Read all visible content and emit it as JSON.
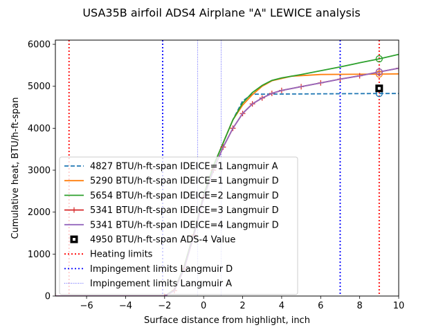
{
  "chart_data": {
    "type": "line",
    "title": "USA35B airfoil ADS4 Airplane \"A\" LEWICE analysis",
    "xlabel": "Surface distance from highlight, inch",
    "ylabel": "Cumulative heat, BTU/h-ft-span",
    "xlim": [
      -7.6,
      10
    ],
    "ylim": [
      0,
      6100
    ],
    "xticks": [
      -6,
      -4,
      -2,
      0,
      2,
      4,
      6,
      8,
      10
    ],
    "yticks": [
      0,
      1000,
      2000,
      3000,
      4000,
      5000,
      6000
    ],
    "grid": false,
    "legend_position": "lower-left",
    "series": [
      {
        "name": "4827 BTU/h-ft-span IDEICE=1 Langmuir A",
        "color": "#1f77b4",
        "style": "dashed",
        "marker": "",
        "x": [
          -7.6,
          -2.0,
          -1.5,
          -1.0,
          -0.5,
          0.0,
          0.5,
          1.0,
          1.5,
          2.0,
          2.5,
          9.0,
          10.0
        ],
        "y": [
          0,
          0,
          150,
          700,
          1500,
          2400,
          3100,
          3650,
          4200,
          4650,
          4810,
          4827,
          4827
        ]
      },
      {
        "name": "5290 BTU/h-ft-span IDEICE=1 Langmuir D",
        "color": "#ff7f0e",
        "style": "solid",
        "marker": "",
        "x": [
          -7.6,
          -2.0,
          -1.5,
          -1.0,
          -0.5,
          0.0,
          0.5,
          1.0,
          1.5,
          2.0,
          2.5,
          3.0,
          3.5,
          4.5,
          6.0,
          9.0,
          10.0
        ],
        "y": [
          0,
          0,
          150,
          700,
          1500,
          2400,
          3100,
          3650,
          4200,
          4550,
          4800,
          5000,
          5130,
          5240,
          5280,
          5290,
          5295
        ]
      },
      {
        "name": "5654 BTU/h-ft-span IDEICE=2 Langmuir D",
        "color": "#2ca02c",
        "style": "solid",
        "marker": "",
        "x": [
          -7.6,
          -2.0,
          -1.5,
          -1.0,
          -0.5,
          0.0,
          0.5,
          1.0,
          1.5,
          2.0,
          2.5,
          3.0,
          3.5,
          4.0,
          5.0,
          6.0,
          7.0,
          8.0,
          9.0,
          10.0
        ],
        "y": [
          0,
          0,
          150,
          700,
          1500,
          2400,
          3100,
          3650,
          4200,
          4600,
          4850,
          5020,
          5140,
          5200,
          5280,
          5370,
          5460,
          5560,
          5654,
          5760
        ]
      },
      {
        "name": "5341 BTU/h-ft-span IDEICE=3 Langmuir D",
        "color": "#d62728",
        "style": "solid",
        "marker": "+",
        "x": [
          -7.6,
          -2.0,
          -1.5,
          -1.0,
          -0.5,
          0.0,
          0.5,
          1.0,
          1.5,
          2.0,
          2.5,
          3.0,
          3.5,
          4.0,
          5.0,
          6.0,
          7.0,
          8.0,
          9.0,
          10.0
        ],
        "y": [
          0,
          0,
          130,
          650,
          1450,
          2350,
          3000,
          3550,
          4000,
          4350,
          4580,
          4720,
          4830,
          4900,
          4990,
          5080,
          5170,
          5250,
          5341,
          5430
        ]
      },
      {
        "name": "5341 BTU/h-ft-span IDEICE=4 Langmuir D",
        "color": "#9467bd",
        "style": "solid",
        "marker": "",
        "x": [
          -7.6,
          -2.0,
          -1.5,
          -1.0,
          -0.5,
          0.0,
          0.5,
          1.0,
          1.5,
          2.0,
          2.5,
          3.0,
          3.5,
          4.0,
          5.0,
          6.0,
          7.0,
          8.0,
          9.0,
          10.0
        ],
        "y": [
          0,
          0,
          130,
          650,
          1450,
          2350,
          3000,
          3550,
          4000,
          4350,
          4580,
          4720,
          4830,
          4900,
          4990,
          5080,
          5170,
          5250,
          5341,
          5430
        ]
      }
    ],
    "ads4_value": {
      "name": "4950 BTU/h-ft-span ADS-4 Value",
      "x": 9.0,
      "y": 4950
    },
    "end_markers": [
      {
        "x": 9.0,
        "y": 4827,
        "color": "#1f77b4"
      },
      {
        "x": 9.0,
        "y": 5290,
        "color": "#ff7f0e"
      },
      {
        "x": 9.0,
        "y": 5654,
        "color": "#2ca02c"
      },
      {
        "x": 9.0,
        "y": 5341,
        "color": "#d62728"
      },
      {
        "x": 9.0,
        "y": 5341,
        "color": "#9467bd"
      }
    ],
    "vlines": [
      {
        "group": "Heating limits",
        "x": -6.9,
        "color": "#ff0000",
        "style": "dotted-thick"
      },
      {
        "group": "Heating limits",
        "x": 9.0,
        "color": "#ff0000",
        "style": "dotted-thick"
      },
      {
        "group": "Impingement limits Langmuir D",
        "x": -2.1,
        "color": "#0000ff",
        "style": "dotted-thick"
      },
      {
        "group": "Impingement limits Langmuir D",
        "x": 7.0,
        "color": "#0000ff",
        "style": "dotted-thick"
      },
      {
        "group": "Impingement limits Langmuir A",
        "x": -0.3,
        "color": "#0000ff",
        "style": "dotted-thin"
      },
      {
        "group": "Impingement limits Langmuir A",
        "x": 0.9,
        "color": "#0000ff",
        "style": "dotted-thin"
      }
    ],
    "legend": [
      {
        "label": "4827 BTU/h-ft-span IDEICE=1 Langmuir A",
        "color": "#1f77b4",
        "kind": "dashed"
      },
      {
        "label": "5290 BTU/h-ft-span IDEICE=1 Langmuir D",
        "color": "#ff7f0e",
        "kind": "solid"
      },
      {
        "label": "5654 BTU/h-ft-span IDEICE=2 Langmuir D",
        "color": "#2ca02c",
        "kind": "solid"
      },
      {
        "label": "5341 BTU/h-ft-span IDEICE=3 Langmuir D",
        "color": "#d62728",
        "kind": "plus"
      },
      {
        "label": "5341 BTU/h-ft-span IDEICE=4 Langmuir D",
        "color": "#9467bd",
        "kind": "solid"
      },
      {
        "label": "4950 BTU/h-ft-span ADS-4 Value",
        "color": "#000000",
        "kind": "square"
      },
      {
        "label": "Heating limits",
        "color": "#ff0000",
        "kind": "dotted-thick"
      },
      {
        "label": "Impingement limits Langmuir D",
        "color": "#0000ff",
        "kind": "dotted-thick"
      },
      {
        "label": "Impingement limits Langmuir A",
        "color": "#0000ff",
        "kind": "dotted-thin"
      }
    ]
  }
}
